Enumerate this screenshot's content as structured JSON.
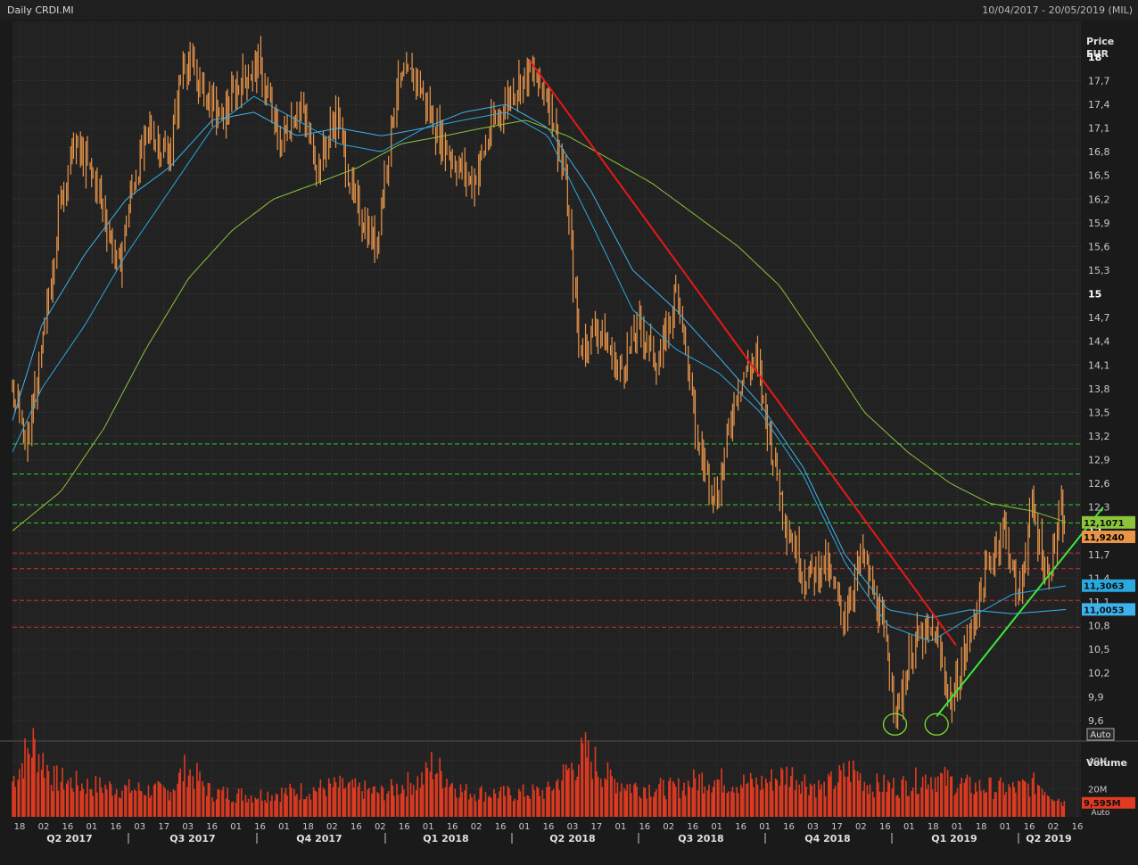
{
  "header": {
    "title": "Daily CRDI.MI",
    "date_range": "10/04/2017 - 20/05/2019 (MIL)"
  },
  "price_axis": {
    "label_line1": "Price",
    "label_line2": "EUR",
    "auto_label": "Auto"
  },
  "volume_axis": {
    "label": "Volume",
    "auto_label": "Auto"
  },
  "colors": {
    "background": "#1a1a1a",
    "plot_bg": "#222222",
    "grid": "#3a3a3a",
    "candle": "#e8954a",
    "ma_fast": "#2aa8e0",
    "ma_mid": "#3db3ee",
    "ma_slow": "#8cc43a",
    "downtrend": "#e81818",
    "uptrend": "#3ce83c",
    "resistance": "#2fd02f",
    "support": "#c83030",
    "volume": "#e03a20",
    "circle": "#7cdc2a"
  },
  "chart_data": {
    "type": "line",
    "title": "Daily CRDI.MI",
    "ylabel": "Price EUR",
    "ylim": [
      9.35,
      18.45
    ],
    "y_ticks": [
      "18",
      "17,7",
      "17,4",
      "17,1",
      "16,8",
      "16,5",
      "16,2",
      "15,9",
      "15,6",
      "15,3",
      "15",
      "14,7",
      "14,4",
      "14,1",
      "13,8",
      "13,5",
      "13,2",
      "12,9",
      "12,6",
      "12,3",
      "12",
      "11,7",
      "11,4",
      "11,1",
      "10,8",
      "10,5",
      "10,2",
      "9,9",
      "9,6"
    ],
    "y_tick_values": [
      18,
      17.7,
      17.4,
      17.1,
      16.8,
      16.5,
      16.2,
      15.9,
      15.6,
      15.3,
      15,
      14.7,
      14.4,
      14.1,
      13.8,
      13.5,
      13.2,
      12.9,
      12.6,
      12.3,
      12,
      11.7,
      11.4,
      11.1,
      10.8,
      10.5,
      10.2,
      9.9,
      9.6
    ],
    "x_start": "2017-04-10",
    "x_end": "2019-05-20",
    "x_tick_labels": [
      "18",
      "02",
      "16",
      "01",
      "16",
      "03",
      "17",
      "03",
      "16",
      "01",
      "16",
      "01",
      "18",
      "02",
      "16",
      "02",
      "16",
      "01",
      "16",
      "02",
      "16",
      "01",
      "16",
      "03",
      "17",
      "01",
      "16",
      "02",
      "16",
      "01",
      "16",
      "01",
      "16",
      "03",
      "17",
      "02",
      "16",
      "01",
      "18",
      "01",
      "18",
      "01",
      "16",
      "02",
      "16"
    ],
    "quarter_labels": [
      "Q2 2017",
      "Q3 2017",
      "Q4 2017",
      "Q1 2018",
      "Q2 2018",
      "Q3 2018",
      "Q4 2018",
      "Q1 2019",
      "Q2 2019"
    ],
    "price_points": [
      [
        "2017-04-10",
        13.9
      ],
      [
        "2017-04-20",
        13.0
      ],
      [
        "2017-05-02",
        14.3
      ],
      [
        "2017-05-15",
        16.2
      ],
      [
        "2017-05-25",
        16.9
      ],
      [
        "2017-06-10",
        16.4
      ],
      [
        "2017-06-26",
        15.3
      ],
      [
        "2017-07-05",
        16.3
      ],
      [
        "2017-07-18",
        17.1
      ],
      [
        "2017-08-01",
        16.7
      ],
      [
        "2017-08-12",
        18.0
      ],
      [
        "2017-08-25",
        17.6
      ],
      [
        "2017-09-08",
        17.2
      ],
      [
        "2017-09-22",
        17.7
      ],
      [
        "2017-10-05",
        17.9
      ],
      [
        "2017-10-20",
        16.9
      ],
      [
        "2017-11-03",
        17.4
      ],
      [
        "2017-11-17",
        16.6
      ],
      [
        "2017-11-30",
        17.3
      ],
      [
        "2017-12-12",
        16.2
      ],
      [
        "2017-12-28",
        15.6
      ],
      [
        "2018-01-12",
        17.6
      ],
      [
        "2018-01-25",
        17.8
      ],
      [
        "2018-02-09",
        17.1
      ],
      [
        "2018-02-22",
        16.7
      ],
      [
        "2018-03-08",
        16.4
      ],
      [
        "2018-03-22",
        17.1
      ],
      [
        "2018-04-06",
        17.6
      ],
      [
        "2018-04-18",
        17.8
      ],
      [
        "2018-05-02",
        17.5
      ],
      [
        "2018-05-14",
        16.4
      ],
      [
        "2018-05-24",
        14.3
      ],
      [
        "2018-06-06",
        14.6
      ],
      [
        "2018-06-22",
        14.0
      ],
      [
        "2018-07-06",
        14.6
      ],
      [
        "2018-07-20",
        14.1
      ],
      [
        "2018-08-03",
        15.1
      ],
      [
        "2018-08-17",
        13.1
      ],
      [
        "2018-08-31",
        12.4
      ],
      [
        "2018-09-14",
        13.8
      ],
      [
        "2018-09-28",
        14.2
      ],
      [
        "2018-10-08",
        13.2
      ],
      [
        "2018-10-20",
        12.1
      ],
      [
        "2018-11-03",
        11.4
      ],
      [
        "2018-11-17",
        11.6
      ],
      [
        "2018-11-30",
        10.9
      ],
      [
        "2018-12-14",
        11.7
      ],
      [
        "2018-12-28",
        10.8
      ],
      [
        "2019-01-08",
        9.7
      ],
      [
        "2019-01-20",
        10.6
      ],
      [
        "2019-02-04",
        10.7
      ],
      [
        "2019-02-16",
        9.8
      ],
      [
        "2019-02-28",
        10.6
      ],
      [
        "2019-03-12",
        11.4
      ],
      [
        "2019-03-26",
        12.1
      ],
      [
        "2019-04-05",
        11.1
      ],
      [
        "2019-04-15",
        12.3
      ],
      [
        "2019-04-26",
        11.4
      ],
      [
        "2019-05-06",
        12.2
      ],
      [
        "2019-05-10",
        11.9
      ]
    ],
    "series": [
      {
        "name": "",
        "color_key": "ma_fast",
        "points": [
          [
            "2017-04-10",
            13.0
          ],
          [
            "2017-05-01",
            13.8
          ],
          [
            "2017-06-01",
            14.6
          ],
          [
            "2017-07-01",
            15.5
          ],
          [
            "2017-08-01",
            16.3
          ],
          [
            "2017-09-01",
            17.1
          ],
          [
            "2017-10-01",
            17.5
          ],
          [
            "2017-11-01",
            17.2
          ],
          [
            "2017-12-01",
            16.9
          ],
          [
            "2018-01-01",
            16.8
          ],
          [
            "2018-02-01",
            17.1
          ],
          [
            "2018-03-01",
            17.2
          ],
          [
            "2018-04-01",
            17.3
          ],
          [
            "2018-05-01",
            17.0
          ],
          [
            "2018-06-01",
            15.9
          ],
          [
            "2018-07-01",
            14.8
          ],
          [
            "2018-08-01",
            14.3
          ],
          [
            "2018-09-01",
            14.0
          ],
          [
            "2018-10-01",
            13.5
          ],
          [
            "2018-11-01",
            12.7
          ],
          [
            "2018-12-01",
            11.6
          ],
          [
            "2019-01-01",
            10.8
          ],
          [
            "2019-02-01",
            10.6
          ],
          [
            "2019-03-01",
            10.9
          ],
          [
            "2019-04-01",
            11.2
          ],
          [
            "2019-05-10",
            11.3063
          ]
        ]
      },
      {
        "name": "",
        "color_key": "ma_mid",
        "points": [
          [
            "2017-04-10",
            13.4
          ],
          [
            "2017-05-01",
            14.6
          ],
          [
            "2017-06-01",
            15.5
          ],
          [
            "2017-07-01",
            16.2
          ],
          [
            "2017-08-01",
            16.6
          ],
          [
            "2017-09-01",
            17.2
          ],
          [
            "2017-10-01",
            17.3
          ],
          [
            "2017-11-01",
            17.0
          ],
          [
            "2017-12-01",
            17.1
          ],
          [
            "2018-01-01",
            17.0
          ],
          [
            "2018-02-01",
            17.1
          ],
          [
            "2018-03-01",
            17.3
          ],
          [
            "2018-04-01",
            17.4
          ],
          [
            "2018-05-01",
            17.1
          ],
          [
            "2018-06-01",
            16.3
          ],
          [
            "2018-07-01",
            15.3
          ],
          [
            "2018-08-01",
            14.8
          ],
          [
            "2018-09-01",
            14.2
          ],
          [
            "2018-10-01",
            13.6
          ],
          [
            "2018-11-01",
            12.8
          ],
          [
            "2018-12-01",
            11.7
          ],
          [
            "2019-01-01",
            11.0
          ],
          [
            "2019-02-01",
            10.9
          ],
          [
            "2019-03-01",
            11.0
          ],
          [
            "2019-04-01",
            10.95
          ],
          [
            "2019-05-10",
            11.0053
          ]
        ]
      },
      {
        "name": "",
        "color_key": "ma_slow",
        "points": [
          [
            "2017-04-10",
            12.0
          ],
          [
            "2017-05-15",
            12.5
          ],
          [
            "2017-06-15",
            13.3
          ],
          [
            "2017-07-15",
            14.3
          ],
          [
            "2017-08-15",
            15.2
          ],
          [
            "2017-09-15",
            15.8
          ],
          [
            "2017-10-15",
            16.2
          ],
          [
            "2017-11-15",
            16.4
          ],
          [
            "2017-12-15",
            16.6
          ],
          [
            "2018-01-15",
            16.9
          ],
          [
            "2018-02-15",
            17.0
          ],
          [
            "2018-03-15",
            17.1
          ],
          [
            "2018-04-15",
            17.2
          ],
          [
            "2018-05-15",
            17.0
          ],
          [
            "2018-06-15",
            16.7
          ],
          [
            "2018-07-15",
            16.4
          ],
          [
            "2018-08-15",
            16.0
          ],
          [
            "2018-09-15",
            15.6
          ],
          [
            "2018-10-15",
            15.1
          ],
          [
            "2018-11-15",
            14.3
          ],
          [
            "2018-12-15",
            13.5
          ],
          [
            "2019-01-15",
            13.0
          ],
          [
            "2019-02-15",
            12.6
          ],
          [
            "2019-03-15",
            12.35
          ],
          [
            "2019-04-15",
            12.25
          ],
          [
            "2019-05-10",
            12.1071
          ]
        ]
      }
    ],
    "downtrend_line": [
      [
        "2018-04-18",
        17.95
      ],
      [
        "2019-02-19",
        10.55
      ]
    ],
    "uptrend_line": [
      [
        "2019-02-05",
        9.65
      ],
      [
        "2019-06-05",
        12.3
      ]
    ],
    "resistance_levels": [
      13.1,
      12.72,
      12.33,
      12.1
    ],
    "support_levels": [
      11.72,
      11.52,
      11.12,
      10.78
    ],
    "circled_lows": [
      [
        "2019-01-06",
        9.55
      ],
      [
        "2019-02-05",
        9.55
      ]
    ],
    "value_tags": [
      {
        "label": "12,1071",
        "value": 12.1071,
        "color_key": "ma_slow"
      },
      {
        "label": "11,9240",
        "value": 11.924,
        "color_key": "candle"
      },
      {
        "label": "11,3063",
        "value": 11.3063,
        "color_key": "ma_fast"
      },
      {
        "label": "11,0053",
        "value": 11.0053,
        "color_key": "ma_mid"
      }
    ],
    "volume": {
      "ylabel": "Volume",
      "ticks": [
        "40M",
        "20M"
      ],
      "tick_values": [
        40,
        20
      ],
      "ylim": [
        0,
        53
      ],
      "last_label": "9,595M",
      "last_value": 9.595,
      "units": "M",
      "points": [
        [
          "2017-04-10",
          28
        ],
        [
          "2017-04-25",
          58
        ],
        [
          "2017-05-10",
          30
        ],
        [
          "2017-06-01",
          25
        ],
        [
          "2017-07-01",
          22
        ],
        [
          "2017-08-01",
          20
        ],
        [
          "2017-08-14",
          38
        ],
        [
          "2017-09-01",
          19
        ],
        [
          "2017-10-01",
          17
        ],
        [
          "2017-11-01",
          20
        ],
        [
          "2017-12-01",
          24
        ],
        [
          "2018-01-01",
          19
        ],
        [
          "2018-02-01",
          30
        ],
        [
          "2018-02-06",
          41
        ],
        [
          "2018-03-01",
          20
        ],
        [
          "2018-04-01",
          18
        ],
        [
          "2018-05-01",
          20
        ],
        [
          "2018-05-28",
          50
        ],
        [
          "2018-06-15",
          30
        ],
        [
          "2018-07-01",
          24
        ],
        [
          "2018-08-01",
          22
        ],
        [
          "2018-08-20",
          30
        ],
        [
          "2018-09-15",
          27
        ],
        [
          "2018-10-01",
          26
        ],
        [
          "2018-10-22",
          34
        ],
        [
          "2018-11-15",
          22
        ],
        [
          "2018-12-06",
          37
        ],
        [
          "2018-12-20",
          25
        ],
        [
          "2019-01-10",
          24
        ],
        [
          "2019-02-01",
          32
        ],
        [
          "2019-03-01",
          24
        ],
        [
          "2019-04-01",
          22
        ],
        [
          "2019-04-20",
          26
        ],
        [
          "2019-05-10",
          10
        ]
      ]
    }
  }
}
